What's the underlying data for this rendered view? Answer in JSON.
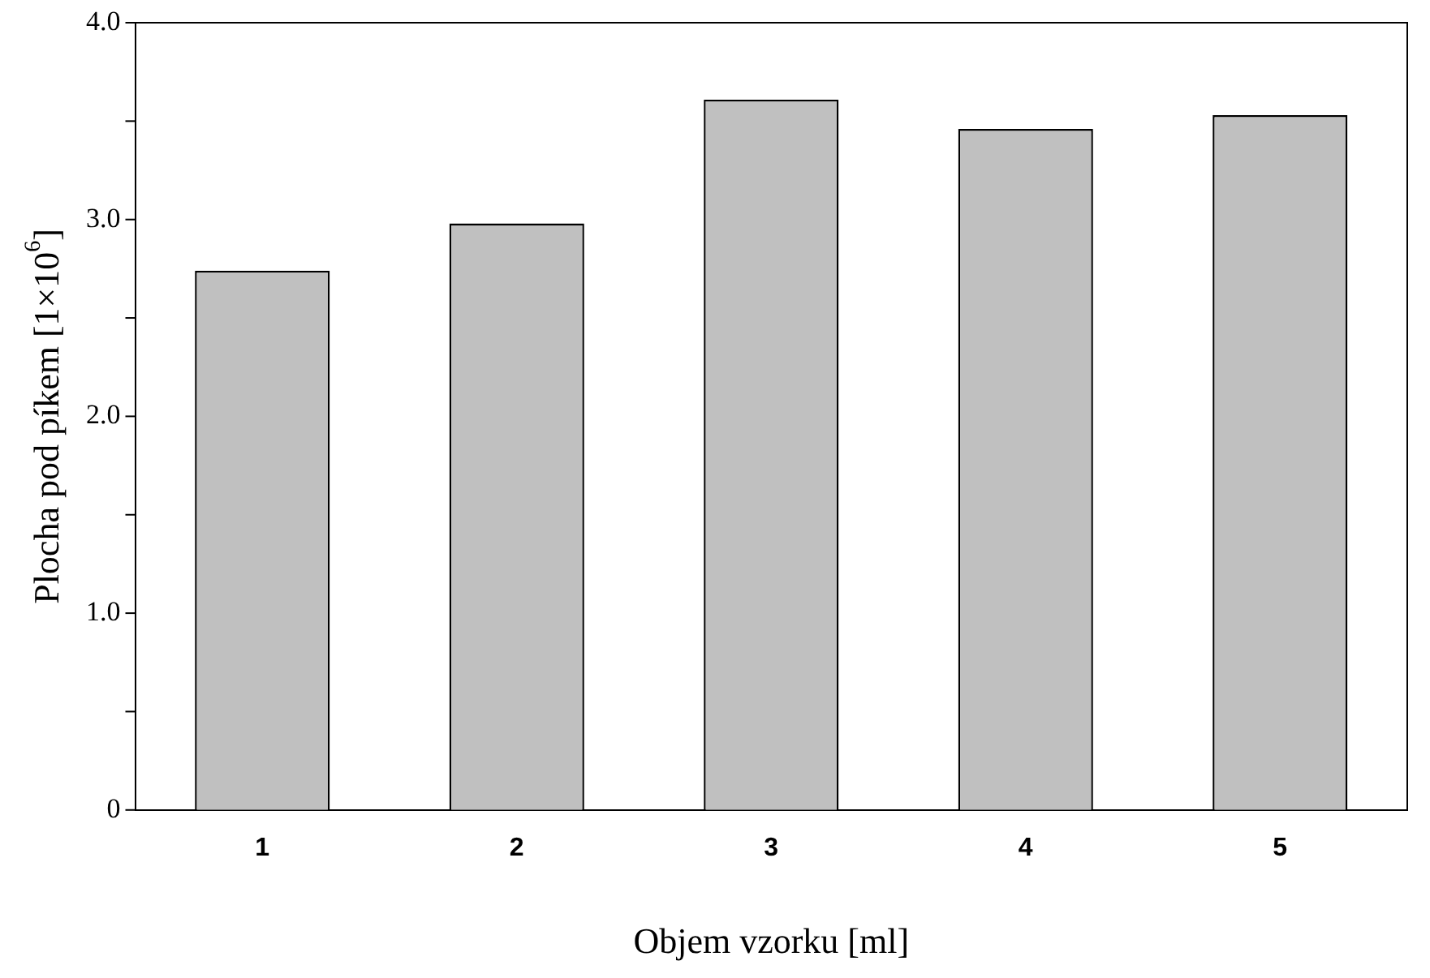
{
  "chart_data": {
    "type": "bar",
    "xlabel": "Objem vzorku [ml]",
    "ylabel": "Plocha pod píkem [1×10$^{6}$]",
    "categories": [
      "1",
      "2",
      "3",
      "4",
      "5"
    ],
    "values": [
      2.74,
      2.98,
      3.61,
      3.46,
      3.53
    ],
    "color": "#c0c0c0",
    "ylim": [
      0,
      4
    ],
    "yticks": [
      0,
      {
        "value": 0.5,
        "label": null
      },
      {
        "value": 1,
        "label": "1.0"
      },
      {
        "value": 1.5,
        "label": null
      },
      {
        "value": 2,
        "label": "2.0"
      },
      {
        "value": 2.5,
        "label": null
      },
      {
        "value": 3,
        "label": "3.0"
      },
      {
        "value": 3.5,
        "label": null
      },
      {
        "value": 4,
        "label": "4.0"
      }
    ],
    "grid": false,
    "legend": false
  }
}
